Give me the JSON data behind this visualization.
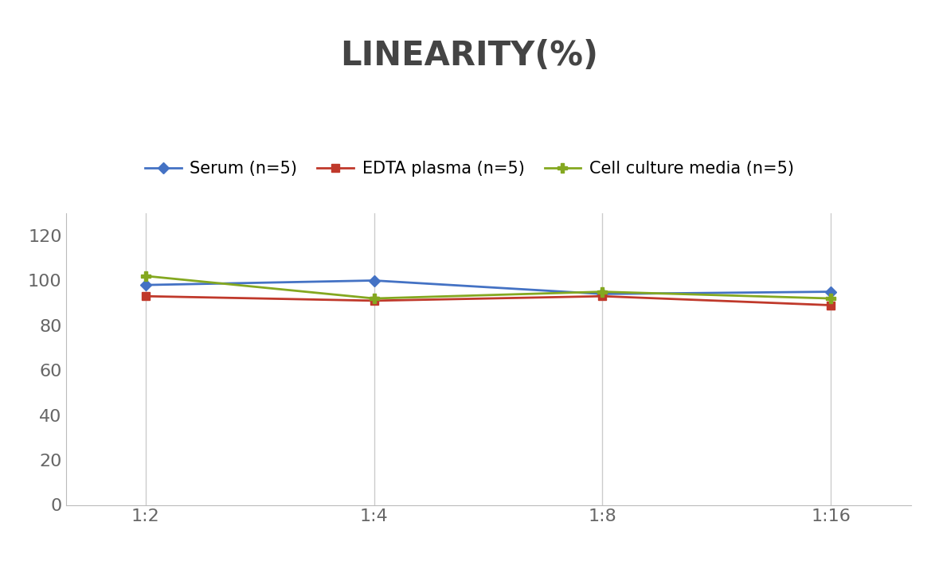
{
  "title": "LINEARITY(%)",
  "x_labels": [
    "1:2",
    "1:4",
    "1:8",
    "1:16"
  ],
  "x_positions": [
    0,
    1,
    2,
    3
  ],
  "series": [
    {
      "label": "Serum (n=5)",
      "values": [
        98,
        100,
        94,
        95
      ],
      "color": "#4472C4",
      "marker": "D",
      "markersize": 7,
      "linewidth": 2
    },
    {
      "label": "EDTA plasma (n=5)",
      "values": [
        93,
        91,
        93,
        89
      ],
      "color": "#C0392B",
      "marker": "s",
      "markersize": 7,
      "linewidth": 2
    },
    {
      "label": "Cell culture media (n=5)",
      "values": [
        102,
        92,
        95,
        92
      ],
      "color": "#84A820",
      "marker": "P",
      "markersize": 9,
      "linewidth": 2
    }
  ],
  "ylim": [
    0,
    130
  ],
  "yticks": [
    0,
    20,
    40,
    60,
    80,
    100,
    120
  ],
  "title_fontsize": 30,
  "legend_fontsize": 15,
  "tick_fontsize": 16,
  "background_color": "#ffffff",
  "grid_color": "#cccccc",
  "title_color": "#444444",
  "tick_color": "#666666"
}
